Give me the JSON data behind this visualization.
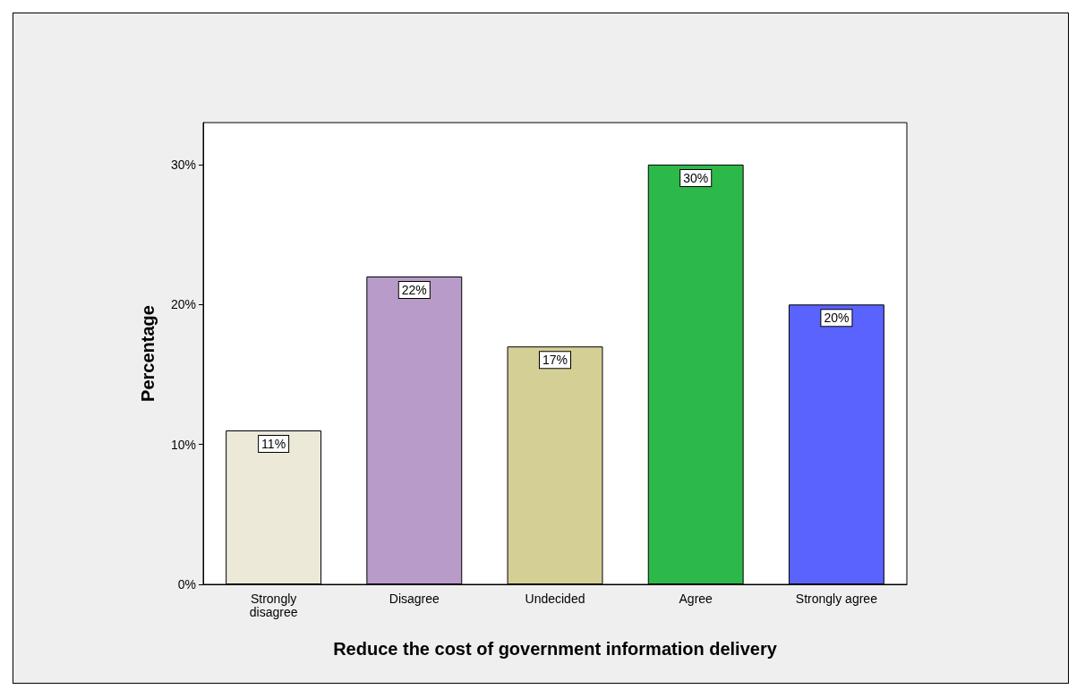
{
  "chart_data": {
    "type": "bar",
    "xlabel": "Reduce the cost of government information delivery",
    "ylabel": "Percentage",
    "categories": [
      "Strongly\ndisagree",
      "Disagree",
      "Undecided",
      "Agree",
      "Strongly agree"
    ],
    "values": [
      11,
      22,
      17,
      30,
      20
    ],
    "colors": [
      "#ece9d8",
      "#b89bc9",
      "#d4cf94",
      "#2db84a",
      "#5b63ff"
    ],
    "value_labels": [
      "11%",
      "22%",
      "17%",
      "30%",
      "20%"
    ],
    "ylim": [
      0,
      33
    ],
    "yticks": [
      {
        "value": 0,
        "label": "0%"
      },
      {
        "value": 10,
        "label": "10%"
      },
      {
        "value": 20,
        "label": "20%"
      },
      {
        "value": 30,
        "label": "30%"
      }
    ],
    "grid": false
  }
}
